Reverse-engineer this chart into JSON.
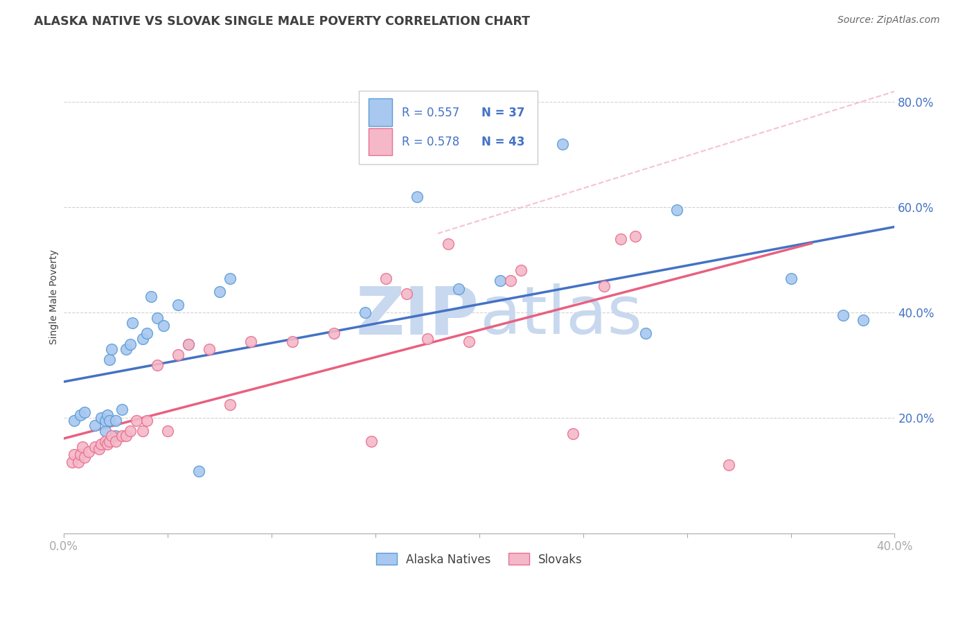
{
  "title": "ALASKA NATIVE VS SLOVAK SINGLE MALE POVERTY CORRELATION CHART",
  "source": "Source: ZipAtlas.com",
  "ylabel": "Single Male Poverty",
  "yticks": [
    "20.0%",
    "40.0%",
    "60.0%",
    "80.0%"
  ],
  "ytick_vals": [
    0.2,
    0.4,
    0.6,
    0.8
  ],
  "xrange": [
    0.0,
    0.4
  ],
  "yrange": [
    -0.02,
    0.88
  ],
  "legend_r1": "0.557",
  "legend_n1": "37",
  "legend_r2": "0.578",
  "legend_n2": "43",
  "blue_dot_color": "#A8C8F0",
  "blue_edge_color": "#5B9BD5",
  "pink_dot_color": "#F4B8C8",
  "pink_edge_color": "#E87090",
  "blue_line_color": "#4472C4",
  "pink_line_color": "#E86080",
  "dash_color": "#F4B8C8",
  "text_blue": "#4472C4",
  "text_dark": "#404040",
  "watermark_color": "#C8D8EE",
  "alaska_x": [
    0.005,
    0.008,
    0.01,
    0.015,
    0.018,
    0.02,
    0.02,
    0.021,
    0.022,
    0.022,
    0.023,
    0.025,
    0.025,
    0.028,
    0.03,
    0.032,
    0.033,
    0.038,
    0.04,
    0.042,
    0.045,
    0.048,
    0.055,
    0.06,
    0.065,
    0.075,
    0.08,
    0.145,
    0.17,
    0.19,
    0.21,
    0.24,
    0.28,
    0.295,
    0.35,
    0.375,
    0.385
  ],
  "alaska_y": [
    0.195,
    0.205,
    0.21,
    0.185,
    0.2,
    0.175,
    0.195,
    0.205,
    0.195,
    0.31,
    0.33,
    0.165,
    0.195,
    0.215,
    0.33,
    0.34,
    0.38,
    0.35,
    0.36,
    0.43,
    0.39,
    0.375,
    0.415,
    0.34,
    0.098,
    0.44,
    0.465,
    0.4,
    0.62,
    0.445,
    0.46,
    0.72,
    0.36,
    0.595,
    0.465,
    0.395,
    0.385
  ],
  "slovak_x": [
    0.004,
    0.005,
    0.007,
    0.008,
    0.009,
    0.01,
    0.012,
    0.015,
    0.017,
    0.018,
    0.02,
    0.021,
    0.022,
    0.023,
    0.025,
    0.028,
    0.03,
    0.032,
    0.035,
    0.038,
    0.04,
    0.045,
    0.05,
    0.055,
    0.06,
    0.07,
    0.08,
    0.09,
    0.11,
    0.13,
    0.148,
    0.155,
    0.165,
    0.175,
    0.185,
    0.195,
    0.215,
    0.22,
    0.245,
    0.26,
    0.268,
    0.275,
    0.32
  ],
  "slovak_y": [
    0.115,
    0.13,
    0.115,
    0.13,
    0.145,
    0.125,
    0.135,
    0.145,
    0.14,
    0.15,
    0.155,
    0.15,
    0.155,
    0.165,
    0.155,
    0.165,
    0.165,
    0.175,
    0.195,
    0.175,
    0.195,
    0.3,
    0.175,
    0.32,
    0.34,
    0.33,
    0.225,
    0.345,
    0.345,
    0.36,
    0.155,
    0.465,
    0.435,
    0.35,
    0.53,
    0.345,
    0.46,
    0.48,
    0.17,
    0.45,
    0.54,
    0.545,
    0.11
  ]
}
